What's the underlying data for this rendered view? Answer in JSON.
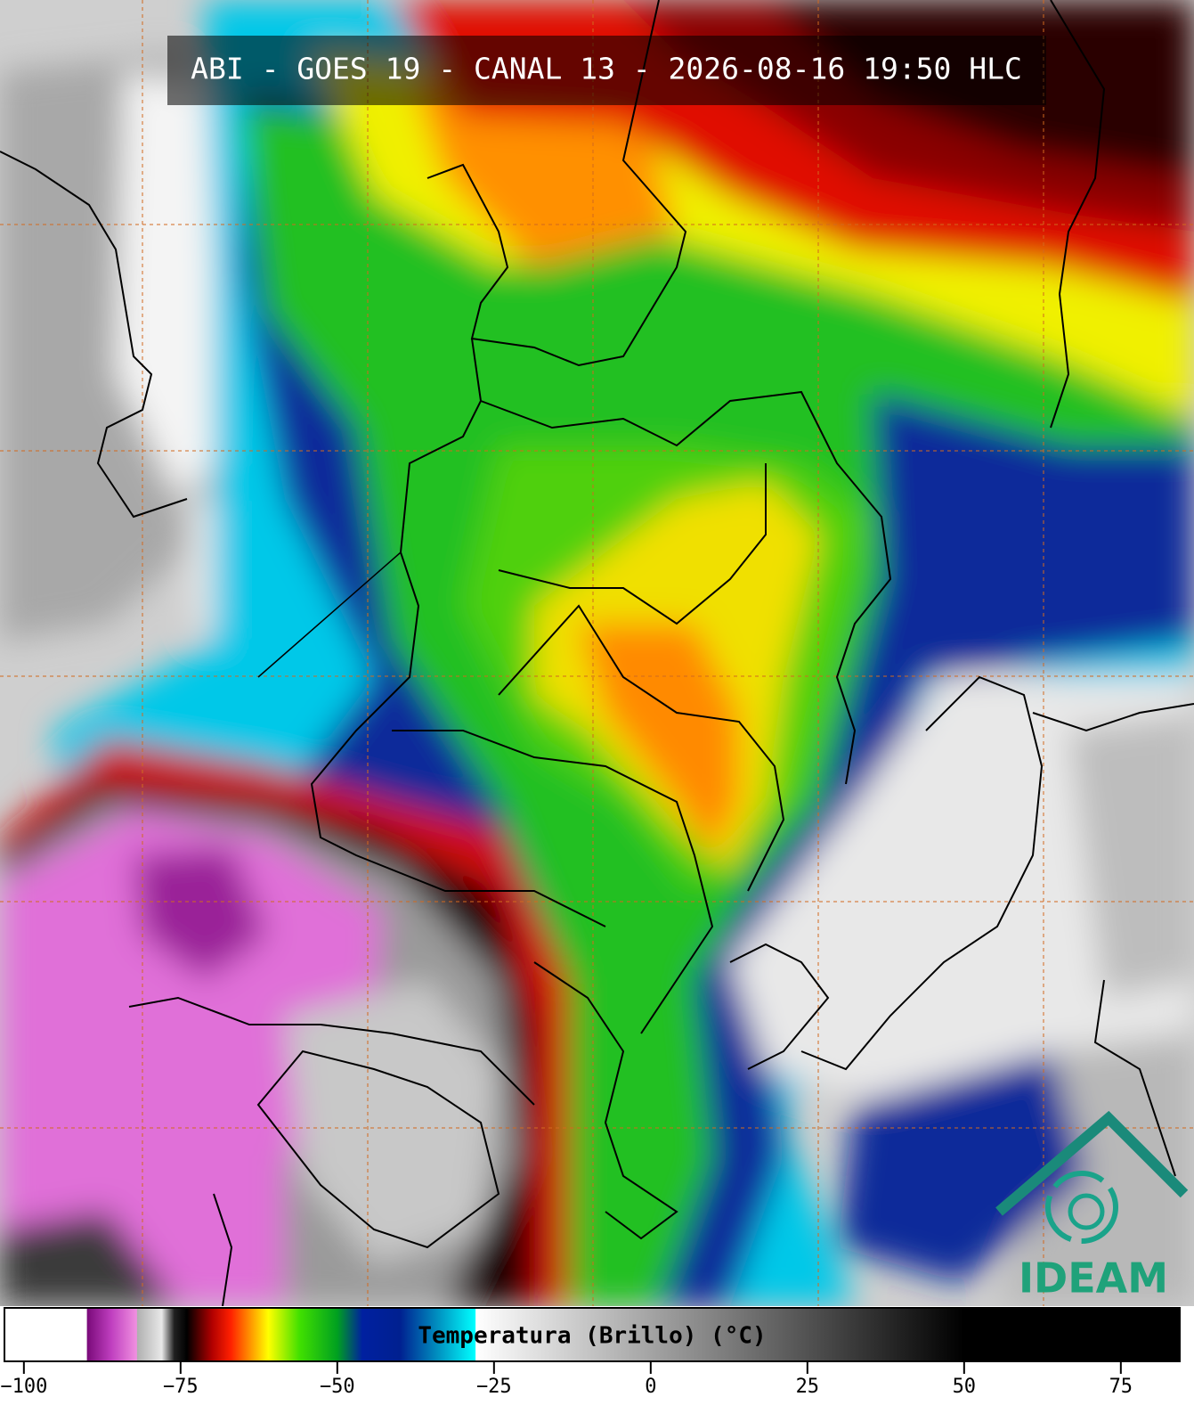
{
  "title": "ABI - GOES 19 - CANAL 13 - 2026-08-16 19:50 HLC",
  "logo": "IDEAM",
  "colorbar": {
    "label": "Temperatura (Brillo) (°C)",
    "xlim": [
      -103.1,
      84.4
    ],
    "xticks": [
      {
        "value": -100,
        "label": "−100"
      },
      {
        "value": -75,
        "label": "−75"
      },
      {
        "value": -50,
        "label": "−50"
      },
      {
        "value": -25,
        "label": "−25"
      },
      0,
      25,
      50,
      75
    ],
    "stops": [
      {
        "value": -103.1,
        "color": "#ffffff"
      },
      {
        "value": -90,
        "color": "#ffffff"
      },
      {
        "value": -89.9,
        "color": "#7a0a7a"
      },
      {
        "value": -86,
        "color": "#c040c0"
      },
      {
        "value": -82,
        "color": "#f090e0"
      },
      {
        "value": -81.9,
        "color": "#b0b0b0"
      },
      {
        "value": -78,
        "color": "#e8e8e8"
      },
      {
        "value": -76,
        "color": "#202020"
      },
      {
        "value": -74,
        "color": "#000000"
      },
      {
        "value": -70,
        "color": "#b00000"
      },
      {
        "value": -67,
        "color": "#ff2000"
      },
      {
        "value": -64,
        "color": "#ff9000"
      },
      {
        "value": -61,
        "color": "#ffff00"
      },
      {
        "value": -56,
        "color": "#40e000"
      },
      {
        "value": -50,
        "color": "#00a020"
      },
      {
        "value": -46,
        "color": "#0020a0"
      },
      {
        "value": -40,
        "color": "#002090"
      },
      {
        "value": -34,
        "color": "#0090c0"
      },
      {
        "value": -28,
        "color": "#00ffff"
      },
      {
        "value": -27.9,
        "color": "#ffffff"
      },
      {
        "value": 50,
        "color": "#000000"
      },
      {
        "value": 84.4,
        "color": "#000000"
      }
    ]
  }
}
